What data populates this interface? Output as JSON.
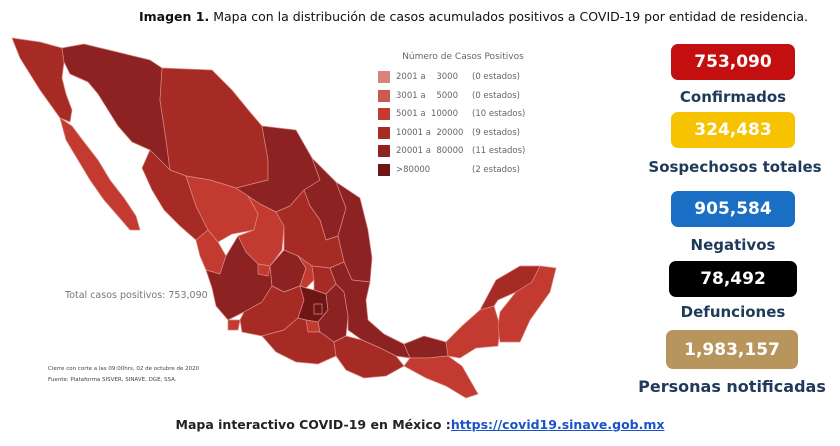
{
  "caption": {
    "bold": "Imagen 1.",
    "text": " Mapa con la distribución de casos acumulados positivos a COVID-19 por entidad de residencia."
  },
  "legend": {
    "title": "Número de Casos Positivos",
    "items": [
      {
        "range": "2001 a    3000",
        "count": "(0 estados)",
        "color": "#d9837d"
      },
      {
        "range": "3001 a    5000",
        "count": "(0 estados)",
        "color": "#cd5a50"
      },
      {
        "range": "5001 a  10000",
        "count": "(10 estados)",
        "color": "#c23a30"
      },
      {
        "range": "10001 a  20000",
        "count": "(9 estados)",
        "color": "#a72b25"
      },
      {
        "range": "20001 a  80000",
        "count": "(11 estados)",
        "color": "#8c2222"
      },
      {
        "range": ">80000",
        "count": "(2 estados)",
        "color": "#6c1616"
      }
    ]
  },
  "map": {
    "total_label": "Total casos positivos: 753,090",
    "cutoff_note": "Cierre con corte a las 09:00hrs, 02 de octubre de 2020",
    "source_note": "Fuente: Plataforma SISVER, SINAVE, DGE, SSA."
  },
  "stats": [
    {
      "value": "753,090",
      "label": "Confirmados",
      "color": "#c30f0f"
    },
    {
      "value": "324,483",
      "label": "Sospechosos totales",
      "color": "#f7c200"
    },
    {
      "value": "905,584",
      "label": "Negativos",
      "color": "#1a6fc4"
    },
    {
      "value": "78,492",
      "label": "Defunciones",
      "color": "#000000"
    },
    {
      "value": "1,983,157",
      "label": "Personas notificadas",
      "color": "#b9955e"
    }
  ],
  "footer": {
    "text": "Mapa interactivo COVID-19 en México :",
    "link": "https://covid19.sinave.gob.mx"
  }
}
